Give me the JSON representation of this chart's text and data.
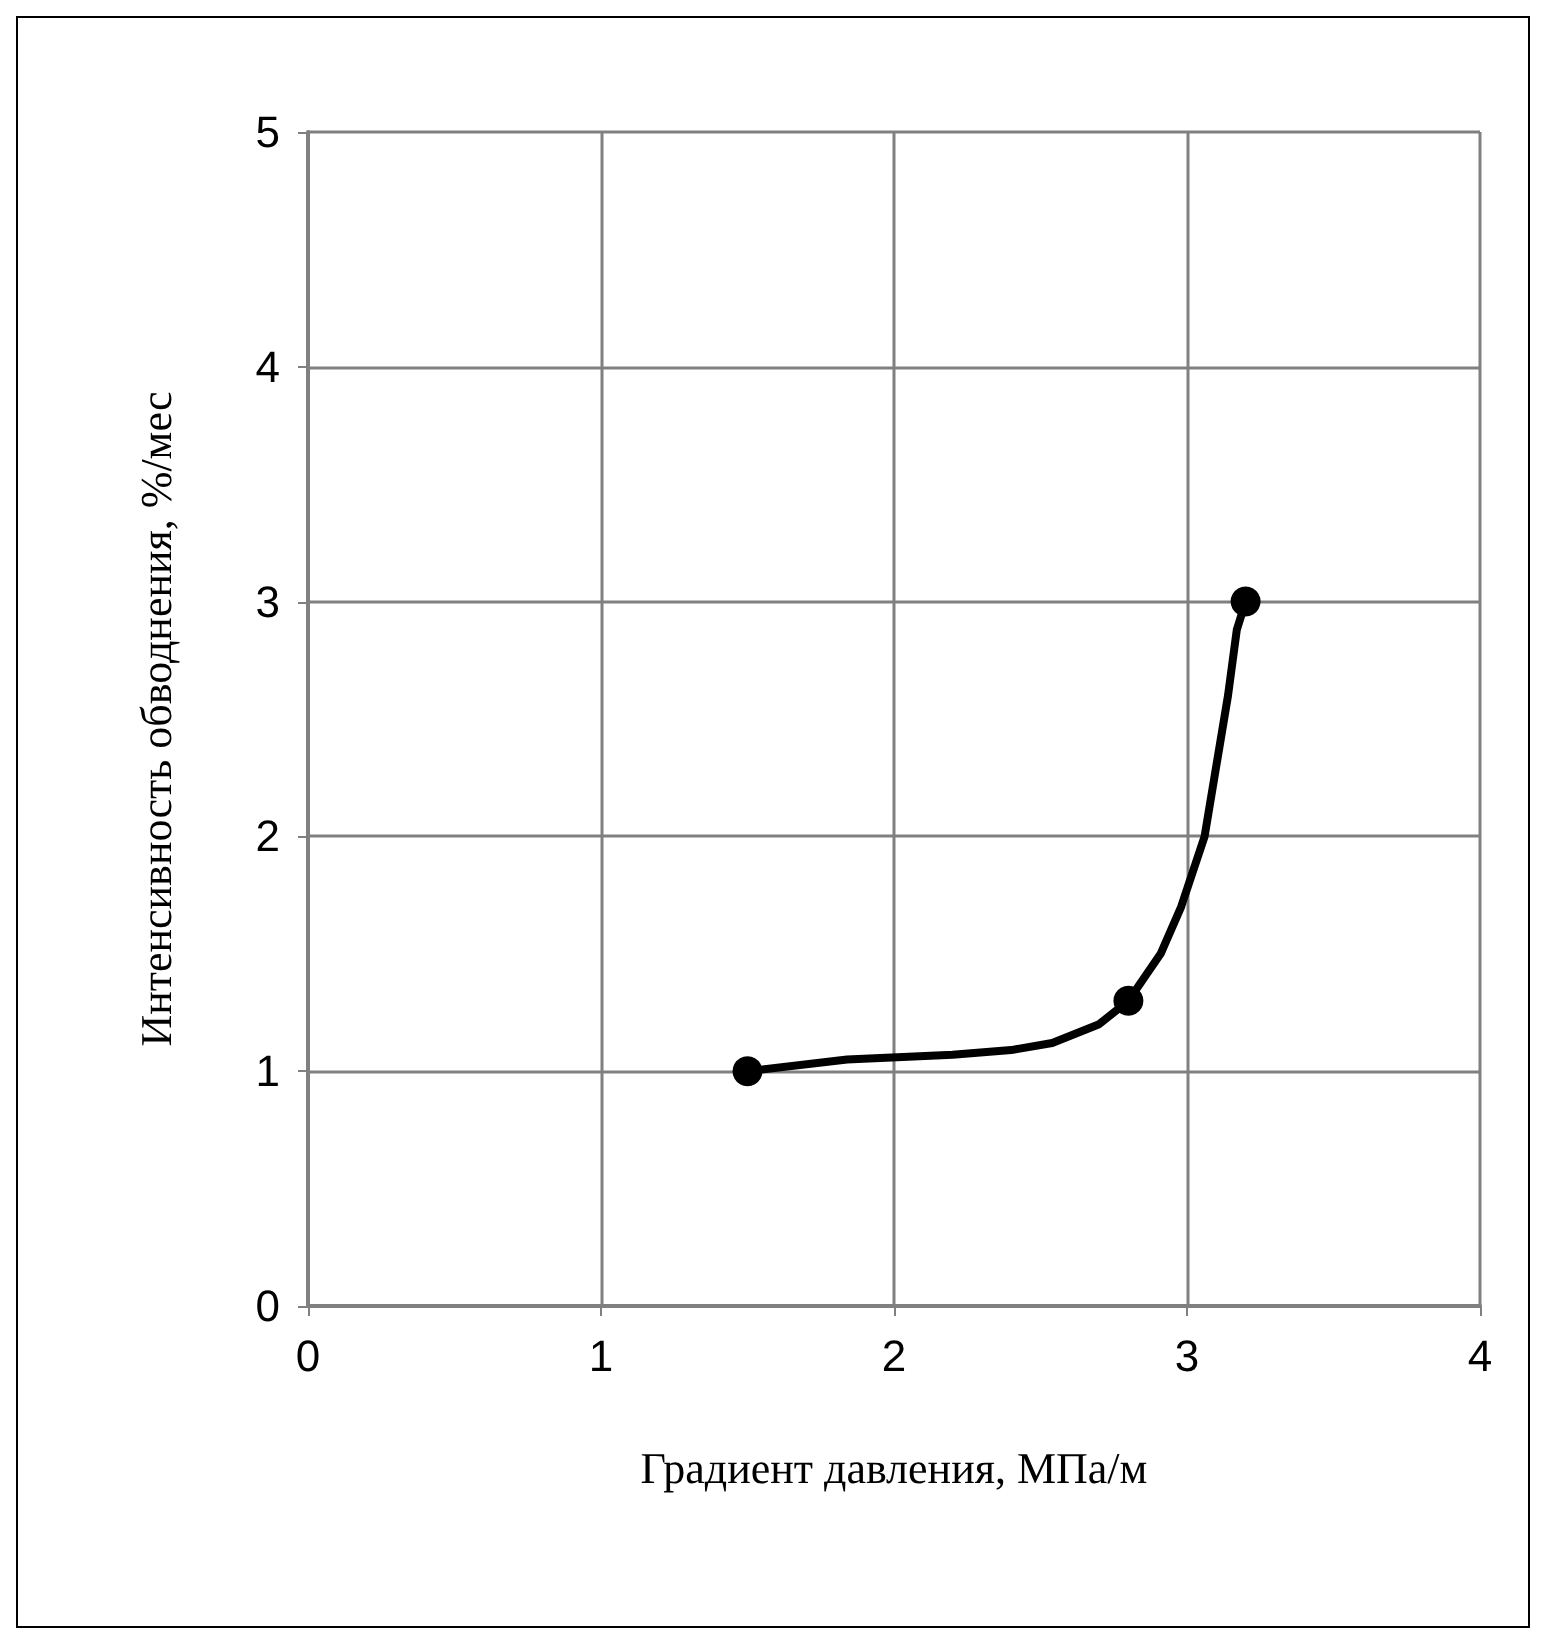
{
  "chart_data": {
    "type": "line",
    "xlabel": "Градиент давления, МПа/м",
    "ylabel": "Интенсивность обводнения, %/мес",
    "xlim": [
      0,
      4
    ],
    "xticks": [
      0,
      1,
      2,
      3,
      4
    ],
    "ylim": [
      0,
      5
    ],
    "yticks": [
      0,
      1,
      2,
      3,
      4,
      5
    ],
    "grid": true,
    "line_style": "solid",
    "series": [
      {
        "marker": "none",
        "color": "#000000",
        "x": [
          1.5,
          1.84,
          2.2,
          2.4,
          2.54,
          2.7,
          2.8,
          2.91,
          2.98,
          3.06,
          3.1,
          3.14,
          3.17,
          3.2
        ],
        "values": [
          1.0,
          1.05,
          1.07,
          1.09,
          1.12,
          1.2,
          1.3,
          1.5,
          1.7,
          2.0,
          2.3,
          2.6,
          2.88,
          3.0
        ]
      },
      {
        "type": "scatter",
        "marker": "circle",
        "color": "#000000",
        "x": [
          1.5,
          2.8,
          3.2
        ],
        "values": [
          1.0,
          1.3,
          3.0
        ]
      }
    ]
  }
}
